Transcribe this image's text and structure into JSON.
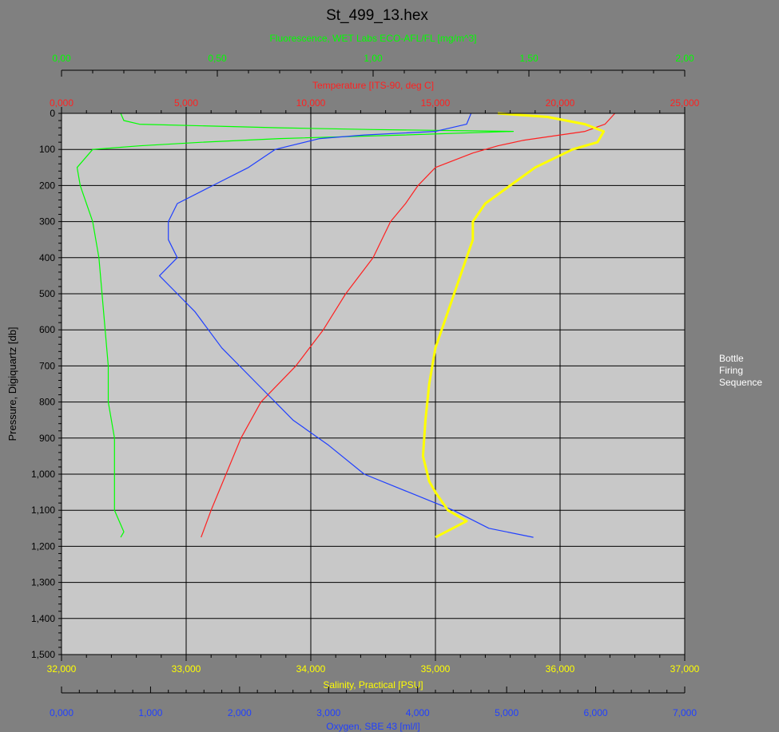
{
  "window": {
    "background": "#808080",
    "plot_background": "#c8c8c8"
  },
  "chart_data": {
    "type": "line",
    "title": "St_499_13.hex",
    "side_label": [
      "Bottle",
      "Firing",
      "Sequence"
    ],
    "y_axis": {
      "label": "Pressure, Digiquartz [db]",
      "range": [
        0,
        1500
      ],
      "inverted": true,
      "ticks": [
        0,
        100,
        200,
        300,
        400,
        500,
        600,
        700,
        800,
        900,
        1000,
        1100,
        1200,
        1300,
        1400,
        1500
      ],
      "tick_labels": [
        "0",
        "100",
        "200",
        "300",
        "400",
        "500",
        "600",
        "700",
        "800",
        "900",
        "1,000",
        "1,100",
        "1,200",
        "1,300",
        "1,400",
        "1,500"
      ]
    },
    "x_axes": [
      {
        "id": "fluorescence",
        "label": "Fluorescence, WET Labs ECO-AFL/FL [mg/m^3]",
        "color": "#00ff00",
        "position": "top-outer",
        "range": [
          0,
          2
        ],
        "ticks": [
          0,
          0.5,
          1,
          1.5,
          2
        ],
        "tick_labels": [
          "0,00",
          "0,50",
          "1,00",
          "1,50",
          "2,00"
        ]
      },
      {
        "id": "temperature",
        "label": "Temperature [ITS-90, deg C]",
        "color": "#ff2020",
        "position": "top-inner",
        "range": [
          0,
          25
        ],
        "ticks": [
          0,
          5,
          10,
          15,
          20,
          25
        ],
        "tick_labels": [
          "0,000",
          "5,000",
          "10,000",
          "15,000",
          "20,000",
          "25,000"
        ]
      },
      {
        "id": "salinity",
        "label": "Salinity, Practical [PSU]",
        "color": "#ffff00",
        "position": "bottom-inner",
        "range": [
          32,
          37
        ],
        "ticks": [
          32,
          33,
          34,
          35,
          36,
          37
        ],
        "tick_labels": [
          "32,000",
          "33,000",
          "34,000",
          "35,000",
          "36,000",
          "37,000"
        ]
      },
      {
        "id": "oxygen",
        "label": "Oxygen, SBE 43 [ml/l]",
        "color": "#2040ff",
        "position": "bottom-outer",
        "range": [
          0,
          7
        ],
        "ticks": [
          0,
          1,
          2,
          3,
          4,
          5,
          6,
          7
        ],
        "tick_labels": [
          "0,000",
          "1,000",
          "2,000",
          "3,000",
          "4,000",
          "5,000",
          "6,000",
          "7,000"
        ]
      }
    ],
    "grid": true,
    "series": [
      {
        "axis": "fluorescence",
        "color": "#00ff00",
        "points": [
          [
            0.19,
            0
          ],
          [
            0.2,
            20
          ],
          [
            0.25,
            30
          ],
          [
            0.7,
            40
          ],
          [
            1.0,
            45
          ],
          [
            1.45,
            50
          ],
          [
            1.1,
            60
          ],
          [
            0.7,
            70
          ],
          [
            0.45,
            80
          ],
          [
            0.25,
            90
          ],
          [
            0.1,
            100
          ],
          [
            0.05,
            150
          ],
          [
            0.06,
            200
          ],
          [
            0.08,
            250
          ],
          [
            0.1,
            300
          ],
          [
            0.12,
            400
          ],
          [
            0.13,
            500
          ],
          [
            0.14,
            600
          ],
          [
            0.15,
            700
          ],
          [
            0.15,
            800
          ],
          [
            0.17,
            900
          ],
          [
            0.17,
            1000
          ],
          [
            0.17,
            1100
          ],
          [
            0.2,
            1160
          ],
          [
            0.19,
            1175
          ]
        ]
      },
      {
        "axis": "temperature",
        "color": "#ff2020",
        "points": [
          [
            22.2,
            0
          ],
          [
            21.8,
            30
          ],
          [
            21.0,
            50
          ],
          [
            20.0,
            60
          ],
          [
            18.5,
            75
          ],
          [
            17.5,
            90
          ],
          [
            16.5,
            110
          ],
          [
            15.0,
            150
          ],
          [
            14.3,
            200
          ],
          [
            13.8,
            250
          ],
          [
            13.2,
            300
          ],
          [
            12.5,
            400
          ],
          [
            11.4,
            500
          ],
          [
            10.5,
            600
          ],
          [
            9.4,
            700
          ],
          [
            8.0,
            800
          ],
          [
            7.2,
            900
          ],
          [
            6.6,
            1000
          ],
          [
            6.0,
            1100
          ],
          [
            5.6,
            1175
          ]
        ]
      },
      {
        "axis": "oxygen",
        "color": "#2040ff",
        "points": [
          [
            4.6,
            0
          ],
          [
            4.55,
            30
          ],
          [
            4.2,
            50
          ],
          [
            3.4,
            60
          ],
          [
            2.9,
            70
          ],
          [
            2.4,
            100
          ],
          [
            2.1,
            150
          ],
          [
            1.7,
            200
          ],
          [
            1.3,
            250
          ],
          [
            1.2,
            300
          ],
          [
            1.2,
            350
          ],
          [
            1.3,
            400
          ],
          [
            1.1,
            450
          ],
          [
            1.3,
            500
          ],
          [
            1.5,
            550
          ],
          [
            1.8,
            650
          ],
          [
            2.2,
            750
          ],
          [
            2.6,
            850
          ],
          [
            3.0,
            920
          ],
          [
            3.4,
            1000
          ],
          [
            3.9,
            1050
          ],
          [
            4.4,
            1100
          ],
          [
            4.8,
            1150
          ],
          [
            5.3,
            1175
          ]
        ]
      },
      {
        "axis": "salinity",
        "color": "#ffff00",
        "points": [
          [
            35.5,
            0
          ],
          [
            35.9,
            10
          ],
          [
            36.2,
            30
          ],
          [
            36.35,
            50
          ],
          [
            36.3,
            80
          ],
          [
            36.1,
            100
          ],
          [
            35.8,
            150
          ],
          [
            35.6,
            200
          ],
          [
            35.4,
            250
          ],
          [
            35.3,
            300
          ],
          [
            35.3,
            350
          ],
          [
            35.2,
            450
          ],
          [
            35.1,
            550
          ],
          [
            35.0,
            650
          ],
          [
            34.95,
            750
          ],
          [
            34.92,
            850
          ],
          [
            34.9,
            950
          ],
          [
            34.95,
            1020
          ],
          [
            35.0,
            1050
          ],
          [
            35.1,
            1100
          ],
          [
            35.25,
            1130
          ],
          [
            35.0,
            1175
          ]
        ]
      }
    ]
  }
}
